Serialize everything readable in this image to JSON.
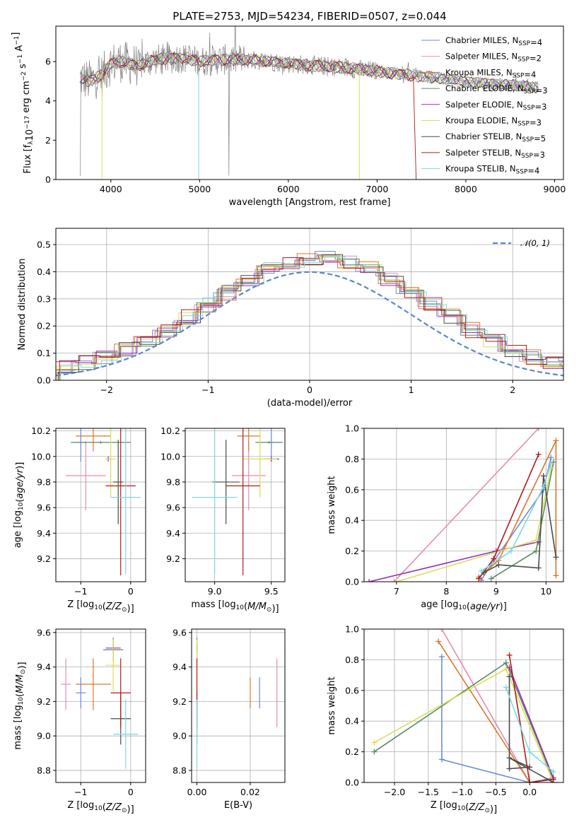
{
  "title": "PLATE=2753, MJD=54234, FIBERID=0507, z=0.044",
  "colors": {
    "Chabrier MILES": "#6b8bd8",
    "Salpeter MILES": "#e68bb5",
    "Kroupa MILES": "#d9772a",
    "Chabrier ELODIE": "#5a8a62",
    "Salpeter ELODIE": "#9b2fae",
    "Kroupa ELODIE": "#d8df5a",
    "Chabrier STELIB": "#4a4a4a",
    "Salpeter STELIB": "#b01a1a",
    "Kroupa STELIB": "#7dd8dd",
    "data": "#808080",
    "normal": "#5b87c9"
  },
  "chart_data": [
    {
      "id": "spectrum",
      "type": "line",
      "title": "PLATE=2753, MJD=54234, FIBERID=0507, z=0.044",
      "xlabel": "wavelength [Angstrom, rest frame]",
      "ylabel": "Flux [f_λ 10^-17 erg cm^-2 s^-1 A^-1]",
      "xlim": [
        3380,
        9100
      ],
      "ylim": [
        0,
        7.8
      ],
      "xticks": [
        4000,
        5000,
        6000,
        7000,
        8000,
        9000
      ],
      "yticks": [
        0,
        2,
        4,
        6
      ],
      "legend_position": "upper-right",
      "legend": [
        {
          "main": "Chabrier MILES, N",
          "sub": "SSP",
          "tail": "=4",
          "key": "Chabrier MILES"
        },
        {
          "main": "Salpeter MILES, N",
          "sub": "SSP",
          "tail": "=2",
          "key": "Salpeter MILES"
        },
        {
          "main": "Kroupa MILES, N",
          "sub": "SSP",
          "tail": "=4",
          "key": "Kroupa MILES"
        },
        {
          "main": "Chabrier ELODIE, N",
          "sub": "SSP",
          "tail": "=3",
          "key": "Chabrier ELODIE"
        },
        {
          "main": "Salpeter ELODIE, N",
          "sub": "SSP",
          "tail": "=3",
          "key": "Salpeter ELODIE"
        },
        {
          "main": "Kroupa ELODIE, N",
          "sub": "SSP",
          "tail": "=3",
          "key": "Kroupa ELODIE"
        },
        {
          "main": "Chabrier STELIB, N",
          "sub": "SSP",
          "tail": "=5",
          "key": "Chabrier STELIB"
        },
        {
          "main": "Salpeter STELIB, N",
          "sub": "SSP",
          "tail": "=3",
          "key": "Salpeter STELIB"
        },
        {
          "main": "Kroupa STELIB, N",
          "sub": "SSP",
          "tail": "=4",
          "key": "Kroupa STELIB"
        }
      ],
      "continuum": [
        [
          3650,
          5.2
        ],
        [
          3750,
          5.0
        ],
        [
          3900,
          5.3
        ],
        [
          4000,
          5.9
        ],
        [
          4100,
          6.0
        ],
        [
          4300,
          5.8
        ],
        [
          4500,
          6.1
        ],
        [
          4800,
          6.2
        ],
        [
          5000,
          6.0
        ],
        [
          5200,
          6.1
        ],
        [
          5500,
          6.1
        ],
        [
          5800,
          6.0
        ],
        [
          6000,
          5.9
        ],
        [
          6300,
          5.8
        ],
        [
          6600,
          5.7
        ],
        [
          6800,
          5.6
        ],
        [
          7000,
          5.5
        ],
        [
          7200,
          5.4
        ],
        [
          7400,
          5.3
        ],
        [
          7600,
          5.2
        ],
        [
          7800,
          5.1
        ],
        [
          8000,
          5.0
        ],
        [
          8200,
          4.9
        ],
        [
          8500,
          4.8
        ],
        [
          8800,
          4.7
        ]
      ]
    },
    {
      "id": "residual-histogram",
      "type": "histogram",
      "xlabel": "(data-model)/error",
      "ylabel": "Normed distribution",
      "xlim": [
        -2.5,
        2.5
      ],
      "ylim": [
        0,
        0.56
      ],
      "xticks": [
        -2,
        -1,
        0,
        1,
        2
      ],
      "yticks": [
        0.0,
        0.1,
        0.2,
        0.3,
        0.4,
        0.5
      ],
      "legend": "𝒩(0, 1)",
      "legend_position": "upper-right",
      "bin_width": 0.2
    },
    {
      "id": "age-vs-z",
      "type": "errorbar",
      "xlabel": "Z [log10(Z/Z⊙)]",
      "ylabel": "age  [log10(age/yr)]",
      "xlim": [
        -1.5,
        0.3
      ],
      "ylim": [
        9.02,
        10.22
      ],
      "xticks": [
        -1,
        0
      ],
      "yticks": [
        9.2,
        9.4,
        9.6,
        9.8,
        10.0,
        10.2
      ],
      "points": [
        {
          "key": "Chabrier MILES",
          "x": -1.0,
          "xerr": 0.1,
          "y": 10.11,
          "yerr": 0.15
        },
        {
          "key": "Salpeter MILES",
          "x": -0.9,
          "xerr": 0.4,
          "y": 9.85,
          "yerr": 0.27
        },
        {
          "key": "Kroupa MILES",
          "x": -0.75,
          "xerr": 0.35,
          "y": 10.16,
          "yerr": 0.12
        },
        {
          "key": "Chabrier ELODIE",
          "x": -0.6,
          "xerr": 0.6,
          "y": 10.11,
          "yerr": 0.01
        },
        {
          "key": "Salpeter ELODIE",
          "x": -0.45,
          "xerr": 0.05,
          "y": 9.98,
          "yerr": 0.02
        },
        {
          "key": "Kroupa ELODIE",
          "x": -0.4,
          "xerr": 0.1,
          "y": 9.98,
          "yerr": 0.3
        },
        {
          "key": "Chabrier STELIB",
          "x": -0.25,
          "xerr": 0.1,
          "y": 9.8,
          "yerr": 0.33
        },
        {
          "key": "Salpeter STELIB",
          "x": -0.2,
          "xerr": 0.3,
          "y": 9.77,
          "yerr": 0.7
        },
        {
          "key": "Kroupa STELIB",
          "x": -0.1,
          "xerr": 0.3,
          "y": 9.68,
          "yerr": 0.6
        }
      ]
    },
    {
      "id": "age-vs-mass",
      "type": "errorbar",
      "xlabel": "mass [log10(M/M⊙)]",
      "ylabel": "",
      "xlim": [
        8.74,
        9.62
      ],
      "ylim": [
        9.02,
        10.22
      ],
      "xticks": [
        9.0,
        9.5
      ],
      "yticks": [
        9.2,
        9.4,
        9.6,
        9.8,
        10.0,
        10.2
      ],
      "points": [
        {
          "key": "Chabrier MILES",
          "x": 9.5,
          "xerr": 0.03,
          "y": 10.11,
          "yerr": 0.15
        },
        {
          "key": "Salpeter MILES",
          "x": 9.3,
          "xerr": 0.15,
          "y": 9.85,
          "yerr": 0.27
        },
        {
          "key": "Kroupa MILES",
          "x": 9.3,
          "xerr": 0.1,
          "y": 10.16,
          "yerr": 0.12
        },
        {
          "key": "Chabrier ELODIE",
          "x": 9.48,
          "xerr": 0.12,
          "y": 10.11,
          "yerr": 0.01
        },
        {
          "key": "Salpeter ELODIE",
          "x": 9.5,
          "xerr": 0.07,
          "y": 9.98,
          "yerr": 0.02
        },
        {
          "key": "Kroupa ELODIE",
          "x": 9.4,
          "xerr": 0.15,
          "y": 9.98,
          "yerr": 0.3
        },
        {
          "key": "Chabrier STELIB",
          "x": 9.1,
          "xerr": 0.12,
          "y": 9.8,
          "yerr": 0.33
        },
        {
          "key": "Salpeter STELIB",
          "x": 9.25,
          "xerr": 0.15,
          "y": 9.77,
          "yerr": 0.7
        },
        {
          "key": "Kroupa STELIB",
          "x": 9.0,
          "xerr": 0.2,
          "y": 9.68,
          "yerr": 0.6
        }
      ]
    },
    {
      "id": "weight-vs-age",
      "type": "line",
      "xlabel": "age  [log10(age/yr)]",
      "ylabel": "mass weight",
      "xlim": [
        6.35,
        10.35
      ],
      "ylim": [
        0,
        1.0
      ],
      "xticks": [
        7,
        8,
        9,
        10
      ],
      "yticks": [
        0.0,
        0.2,
        0.4,
        0.6,
        0.8,
        1.0
      ],
      "series": [
        {
          "key": "Chabrier MILES",
          "x": [
            8.7,
            8.9,
            9.95,
            10.1
          ],
          "y": [
            0.01,
            0.11,
            0.6,
            0.81
          ]
        },
        {
          "key": "Salpeter MILES",
          "x": [
            6.95,
            9.85
          ],
          "y": [
            0.0,
            1.0
          ]
        },
        {
          "key": "Kroupa MILES",
          "x": [
            8.65,
            9.05,
            10.2,
            10.2
          ],
          "y": [
            0.03,
            0.14,
            0.92,
            0.04
          ]
        },
        {
          "key": "Chabrier ELODIE",
          "x": [
            8.9,
            9.8,
            10.15
          ],
          "y": [
            0.02,
            0.2,
            0.78
          ]
        },
        {
          "key": "Salpeter ELODIE",
          "x": [
            6.45,
            9.0,
            9.85
          ],
          "y": [
            0.0,
            0.2,
            0.26
          ]
        },
        {
          "key": "Kroupa ELODIE",
          "x": [
            7.0,
            9.8,
            10.1
          ],
          "y": [
            0.0,
            0.27,
            0.74
          ]
        },
        {
          "key": "Chabrier STELIB",
          "x": [
            8.75,
            9.05,
            9.85,
            9.95,
            10.2
          ],
          "y": [
            0.06,
            0.11,
            0.09,
            0.69,
            0.16
          ]
        },
        {
          "key": "Salpeter STELIB",
          "x": [
            8.65,
            8.95,
            9.85
          ],
          "y": [
            0.02,
            0.15,
            0.83
          ]
        },
        {
          "key": "Kroupa STELIB",
          "x": [
            8.7,
            9.3,
            9.95,
            10.1
          ],
          "y": [
            0.07,
            0.2,
            0.62,
            0.77
          ]
        }
      ]
    },
    {
      "id": "mass-vs-z",
      "type": "errorbar",
      "xlabel": "Z [log10(Z/Z⊙)]",
      "ylabel": "mass [log10(M/M⊙)]",
      "xlim": [
        -1.5,
        0.3
      ],
      "ylim": [
        8.73,
        9.62
      ],
      "xticks": [
        -1,
        0
      ],
      "yticks": [
        8.8,
        9.0,
        9.2,
        9.4,
        9.6
      ],
      "points": [
        {
          "key": "Chabrier MILES",
          "x": -1.0,
          "xerr": 0.1,
          "y": 9.25,
          "yerr": 0.09
        },
        {
          "key": "Salpeter MILES",
          "x": -1.3,
          "xerr": 0.1,
          "y": 9.3,
          "yerr": 0.15
        },
        {
          "key": "Kroupa MILES",
          "x": -0.75,
          "xerr": 0.35,
          "y": 9.3,
          "yerr": 0.15
        },
        {
          "key": "Chabrier ELODIE",
          "x": -0.35,
          "xerr": 0.2,
          "y": 9.5,
          "yerr": 0.07
        },
        {
          "key": "Salpeter ELODIE",
          "x": -0.35,
          "xerr": 0.15,
          "y": 9.51,
          "yerr": 0.03
        },
        {
          "key": "Kroupa ELODIE",
          "x": -0.35,
          "xerr": 0.15,
          "y": 9.41,
          "yerr": 0.15
        },
        {
          "key": "Chabrier STELIB",
          "x": -0.2,
          "xerr": 0.2,
          "y": 9.1,
          "yerr": 0.15
        },
        {
          "key": "Salpeter STELIB",
          "x": -0.2,
          "xerr": 0.2,
          "y": 9.25,
          "yerr": 0.2
        },
        {
          "key": "Kroupa STELIB",
          "x": -0.1,
          "xerr": 0.25,
          "y": 9.01,
          "yerr": 0.2
        }
      ]
    },
    {
      "id": "mass-vs-ebv",
      "type": "errorbar",
      "xlabel": "E(B-V)",
      "ylabel": "",
      "xlim": [
        -0.002,
        0.033
      ],
      "ylim": [
        8.73,
        9.62
      ],
      "xticks": [
        0.0,
        0.02
      ],
      "yticks": [
        8.8,
        9.0,
        9.2,
        9.4,
        9.6
      ],
      "points": [
        {
          "key": "Chabrier MILES",
          "x": 0.0235,
          "yerr": 0.09,
          "y": 9.25
        },
        {
          "key": "Salpeter MILES",
          "x": 0.03,
          "yerr": 0.2,
          "y": 9.25
        },
        {
          "key": "Kroupa MILES",
          "x": 0.02,
          "yerr": 0.09,
          "y": 9.25
        },
        {
          "key": "Chabrier ELODIE",
          "x": 0.0,
          "yerr": 0.07,
          "y": 9.5
        },
        {
          "key": "Salpeter ELODIE",
          "x": 0.0,
          "yerr": 0.03,
          "y": 9.51
        },
        {
          "key": "Kroupa ELODIE",
          "x": 0.0,
          "yerr": 0.15,
          "y": 9.41
        },
        {
          "key": "Chabrier STELIB",
          "x": 0.0,
          "yerr": 0.15,
          "y": 9.1
        },
        {
          "key": "Salpeter STELIB",
          "x": 0.0,
          "yerr": 0.2,
          "y": 9.25
        },
        {
          "key": "Kroupa STELIB",
          "x": 0.0,
          "yerr": 0.2,
          "y": 9.01
        }
      ]
    },
    {
      "id": "weight-vs-z",
      "type": "line",
      "xlabel": "Z [log10(Z/Z⊙)]",
      "ylabel": "mass weight",
      "xlim": [
        -2.45,
        0.5
      ],
      "ylim": [
        0,
        1.0
      ],
      "xticks": [
        -2.0,
        -1.5,
        -1.0,
        -0.5,
        0.0
      ],
      "yticks": [
        0.0,
        0.2,
        0.4,
        0.6,
        0.8,
        1.0
      ],
      "series": [
        {
          "key": "Chabrier MILES",
          "x": [
            -1.3,
            -1.3,
            0.0,
            0.35
          ],
          "y": [
            0.82,
            0.15,
            0.0,
            0.03
          ]
        },
        {
          "key": "Salpeter MILES",
          "x": [
            -1.3,
            0.0
          ],
          "y": [
            1.0,
            0.0
          ]
        },
        {
          "key": "Kroupa MILES",
          "x": [
            -1.35,
            0.0,
            0.35
          ],
          "y": [
            0.92,
            0.0,
            0.02
          ]
        },
        {
          "key": "Chabrier ELODIE",
          "x": [
            -2.3,
            -0.35,
            0.35
          ],
          "y": [
            0.2,
            0.78,
            0.02
          ]
        },
        {
          "key": "Salpeter ELODIE",
          "x": [
            -0.3,
            0.35
          ],
          "y": [
            0.75,
            0.03
          ]
        },
        {
          "key": "Kroupa ELODIE",
          "x": [
            -2.3,
            -0.35,
            0.35
          ],
          "y": [
            0.26,
            0.74,
            0.0
          ]
        },
        {
          "key": "Chabrier STELIB",
          "x": [
            -0.3,
            -0.3,
            0.0,
            -0.3,
            0.35
          ],
          "y": [
            0.69,
            0.09,
            0.1,
            0.16,
            0.0
          ]
        },
        {
          "key": "Salpeter STELIB",
          "x": [
            -0.3,
            0.0,
            0.35
          ],
          "y": [
            0.83,
            0.0,
            0.02
          ]
        },
        {
          "key": "Kroupa STELIB",
          "x": [
            -0.35,
            0.0,
            0.35
          ],
          "y": [
            0.62,
            0.2,
            0.07
          ]
        }
      ]
    }
  ]
}
